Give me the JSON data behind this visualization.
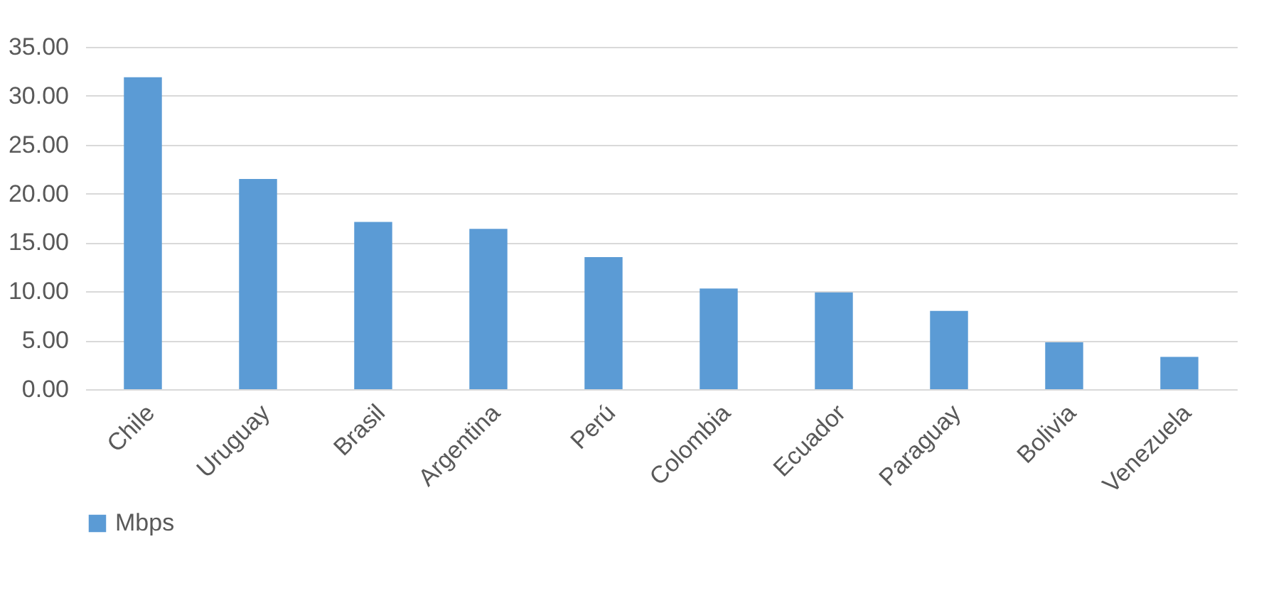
{
  "chart_data": {
    "type": "bar",
    "categories": [
      "Chile",
      "Uruguay",
      "Brasil",
      "Argentina",
      "Perú",
      "Colombia",
      "Ecuador",
      "Paraguay",
      "Bolivia",
      "Venezuela"
    ],
    "series": [
      {
        "name": "Mbps",
        "color": "#5b9bd5",
        "values": [
          31.9,
          21.5,
          17.1,
          16.4,
          13.5,
          10.3,
          9.9,
          8.0,
          4.8,
          3.3
        ]
      }
    ],
    "ylim": [
      0,
      35
    ],
    "yticks": [
      {
        "value": 0,
        "label": "0.00"
      },
      {
        "value": 5,
        "label": "5.00"
      },
      {
        "value": 10,
        "label": "10.00"
      },
      {
        "value": 15,
        "label": "15.00"
      },
      {
        "value": 20,
        "label": "20.00"
      },
      {
        "value": 25,
        "label": "25.00"
      },
      {
        "value": 30,
        "label": "30.00"
      },
      {
        "value": 35,
        "label": "35.00"
      }
    ],
    "grid": "y",
    "legend": "bottom"
  }
}
